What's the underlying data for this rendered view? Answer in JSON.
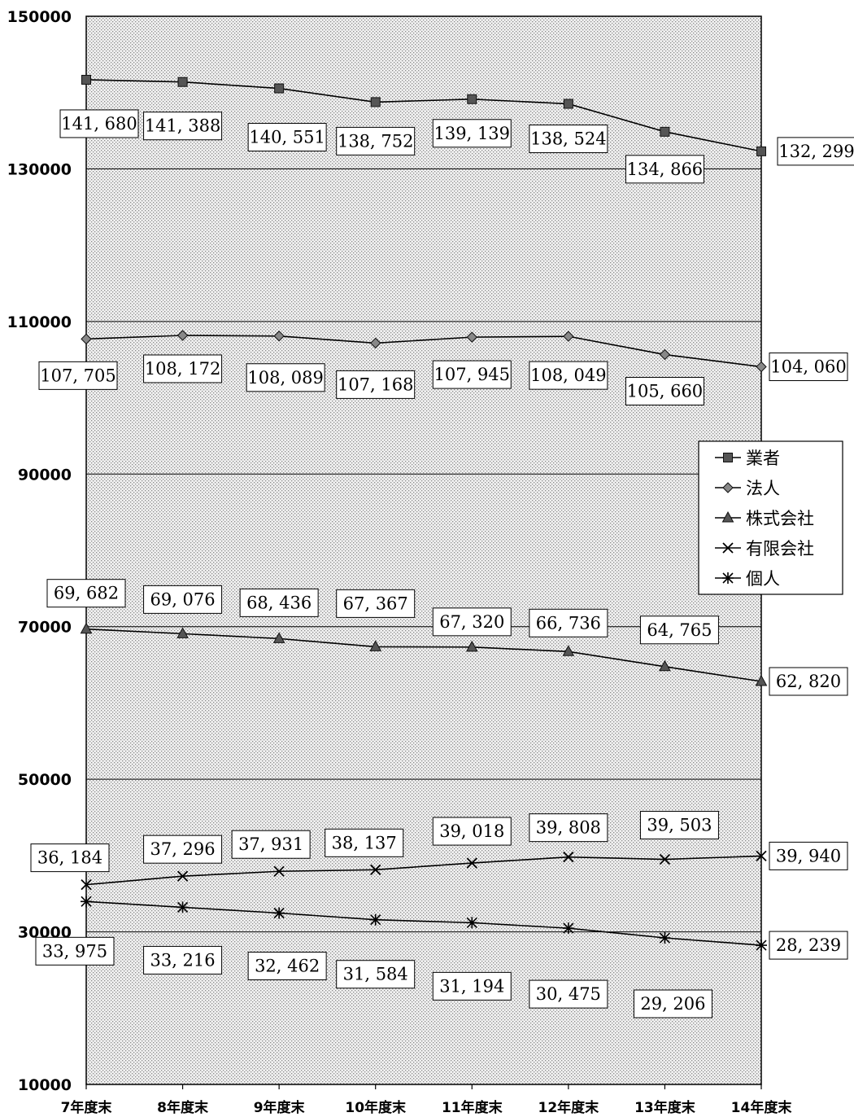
{
  "chart_data": {
    "type": "line",
    "categories": [
      "7年度末",
      "8年度末",
      "9年度末",
      "10年度末",
      "11年度末",
      "12年度末",
      "13年度末",
      "14年度末"
    ],
    "ylim": [
      10000,
      150000
    ],
    "yticks": [
      "10000",
      "30000",
      "50000",
      "70000",
      "90000",
      "110000",
      "130000",
      "150000"
    ],
    "grid": true,
    "legend_position": "right",
    "series": [
      {
        "name": "業者",
        "marker": "square",
        "values": [
          141680,
          141388,
          140551,
          138752,
          139139,
          138524,
          134866,
          132299
        ],
        "labels": [
          "141, 680",
          "141, 388",
          "140, 551",
          "138, 752",
          "139, 139",
          "138, 524",
          "134, 866",
          "132, 299"
        ]
      },
      {
        "name": "法人",
        "marker": "diamond",
        "values": [
          107705,
          108172,
          108089,
          107168,
          107945,
          108049,
          105660,
          104060
        ],
        "labels": [
          "107, 705",
          "108, 172",
          "108, 089",
          "107, 168",
          "107, 945",
          "108, 049",
          "105, 660",
          "104, 060"
        ]
      },
      {
        "name": "株式会社",
        "marker": "triangle",
        "values": [
          69682,
          69076,
          68436,
          67367,
          67320,
          66736,
          64765,
          62820
        ],
        "labels": [
          "69, 682",
          "69, 076",
          "68, 436",
          "67, 367",
          "67, 320",
          "66, 736",
          "64, 765",
          "62, 820"
        ]
      },
      {
        "name": "有限会社",
        "marker": "x",
        "values": [
          36184,
          37296,
          37931,
          38137,
          39018,
          39808,
          39503,
          39940
        ],
        "labels": [
          "36, 184",
          "37, 296",
          "37, 931",
          "38, 137",
          "39, 018",
          "39, 808",
          "39, 503",
          "39, 940"
        ]
      },
      {
        "name": "個人",
        "marker": "asterisk",
        "values": [
          33975,
          33216,
          32462,
          31584,
          31194,
          30475,
          29206,
          28239
        ],
        "labels": [
          "33, 975",
          "33, 216",
          "32, 462",
          "31, 584",
          "31, 194",
          "30, 475",
          "29, 206",
          "28, 239"
        ]
      }
    ]
  }
}
